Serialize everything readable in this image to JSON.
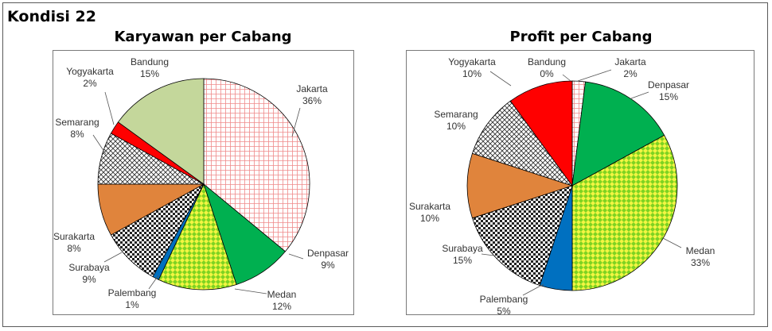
{
  "heading": "Kondisi 22",
  "chart_data": [
    {
      "type": "pie",
      "title": "Karyawan per Cabang",
      "slices": [
        {
          "label": "Jakarta",
          "percent": "36%",
          "value": 36,
          "color": "#f4b6b6",
          "pattern": "grid"
        },
        {
          "label": "Denpasar",
          "percent": "9%",
          "value": 9,
          "color": "#00b050",
          "pattern": "solid"
        },
        {
          "label": "Medan",
          "percent": "12%",
          "value": 12,
          "color": "#d6ef2a",
          "pattern": "diamond"
        },
        {
          "label": "Palembang",
          "percent": "1%",
          "value": 1,
          "color": "#0070c0",
          "pattern": "solid"
        },
        {
          "label": "Surabaya",
          "percent": "9%",
          "value": 9,
          "color": "#222222",
          "pattern": "checker"
        },
        {
          "label": "Surakarta",
          "percent": "8%",
          "value": 8,
          "color": "#e0843c",
          "pattern": "solid"
        },
        {
          "label": "Semarang",
          "percent": "8%",
          "value": 8,
          "color": "#333333",
          "pattern": "lattice"
        },
        {
          "label": "Yogyakarta",
          "percent": "2%",
          "value": 2,
          "color": "#ff0000",
          "pattern": "solid"
        },
        {
          "label": "Bandung",
          "percent": "15%",
          "value": 15,
          "color": "#c4d79b",
          "pattern": "solid"
        }
      ]
    },
    {
      "type": "pie",
      "title": "Profit per Cabang",
      "slices": [
        {
          "label": "Bandung",
          "percent": "0%",
          "value": 0,
          "color": "#c4d79b",
          "pattern": "solid"
        },
        {
          "label": "Jakarta",
          "percent": "2%",
          "value": 2,
          "color": "#f4b6b6",
          "pattern": "grid"
        },
        {
          "label": "Denpasar",
          "percent": "15%",
          "value": 15,
          "color": "#00b050",
          "pattern": "solid"
        },
        {
          "label": "Medan",
          "percent": "33%",
          "value": 33,
          "color": "#d6ef2a",
          "pattern": "diamond"
        },
        {
          "label": "Palembang",
          "percent": "5%",
          "value": 5,
          "color": "#0070c0",
          "pattern": "solid"
        },
        {
          "label": "Surabaya",
          "percent": "15%",
          "value": 15,
          "color": "#222222",
          "pattern": "checker"
        },
        {
          "label": "Surakarta",
          "percent": "10%",
          "value": 10,
          "color": "#e0843c",
          "pattern": "solid"
        },
        {
          "label": "Semarang",
          "percent": "10%",
          "value": 10,
          "color": "#333333",
          "pattern": "lattice"
        },
        {
          "label": "Yogyakarta",
          "percent": "10%",
          "value": 10,
          "color": "#ff0000",
          "pattern": "solid"
        }
      ]
    }
  ]
}
